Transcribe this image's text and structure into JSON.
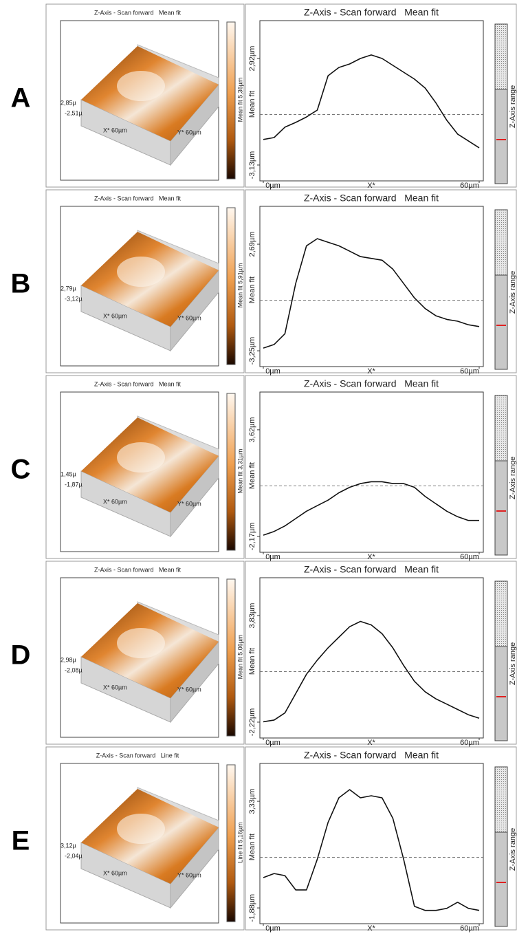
{
  "panels": [
    {
      "label": "A",
      "map": {
        "title": "Z-Axis - Scan forward   Mean fit",
        "z_high": "2,85µ",
        "z_low": "-2,51µ",
        "x_axis": "X* 60µm",
        "y_axis": "Y* 60µm",
        "colorbar": "Mean fit 5,36µm"
      },
      "profile": {
        "title": "Z-Axis - Scan forward   Mean fit",
        "ylabel": "Mean fit",
        "xlabel": "X*",
        "range_label": "Z-Axis range",
        "xlim": [
          0,
          60
        ],
        "xticks": [
          {
            "value": 0,
            "label": "0µm"
          },
          {
            "value": 60,
            "label": "60µm"
          }
        ],
        "ylim": [
          -4.03,
          5.07
        ],
        "yticks": [
          {
            "value": 2.92,
            "label": "2,92µm"
          },
          {
            "value": -3.13,
            "label": "-3,13µm"
          }
        ],
        "x": [
          0,
          3,
          6,
          9,
          12,
          15,
          18,
          21,
          24,
          27,
          30,
          33,
          36,
          39,
          42,
          45,
          48,
          51,
          54,
          57,
          60
        ],
        "values": [
          -1.68,
          -1.57,
          -0.98,
          -0.71,
          -0.4,
          -0.01,
          1.94,
          2.41,
          2.61,
          2.92,
          3.12,
          2.92,
          2.53,
          2.14,
          1.75,
          1.24,
          0.39,
          -0.59,
          -1.37,
          -1.76,
          -2.15
        ]
      }
    },
    {
      "label": "B",
      "map": {
        "title": "Z-Axis - Scan forward   Mean fit",
        "z_high": "2,79µ",
        "z_low": "-3,12µ",
        "x_axis": "X* 60µm",
        "y_axis": "Y* 60µm",
        "colorbar": "Mean fit 5,91µm"
      },
      "profile": {
        "title": "Z-Axis - Scan forward   Mean fit",
        "ylabel": "Mean fit",
        "xlabel": "X*",
        "range_label": "Z-Axis range",
        "xlim": [
          0,
          60
        ],
        "xticks": [
          {
            "value": 0,
            "label": "0µm"
          },
          {
            "value": 60,
            "label": "60µm"
          }
        ],
        "ylim": [
          -4.13,
          4.8
        ],
        "yticks": [
          {
            "value": 2.69,
            "label": "2,69µm"
          },
          {
            "value": -3.25,
            "label": "-3,25µm"
          }
        ],
        "x": [
          0,
          3,
          6,
          9,
          12,
          15,
          18,
          21,
          24,
          27,
          30,
          33,
          36,
          39,
          42,
          45,
          48,
          51,
          54,
          57,
          60
        ],
        "values": [
          -3.1,
          -2.9,
          -2.3,
          0.5,
          2.6,
          3.0,
          2.8,
          2.6,
          2.3,
          2.0,
          1.9,
          1.8,
          1.3,
          0.5,
          -0.3,
          -0.9,
          -1.3,
          -1.5,
          -1.6,
          -1.8,
          -1.9
        ]
      }
    },
    {
      "label": "C",
      "map": {
        "title": "Z-Axis - Scan forward   Mean fit",
        "z_high": "1,45µ",
        "z_low": "-1,87µ",
        "x_axis": "X* 60µm",
        "y_axis": "Y* 60µm",
        "colorbar": "Mean fit 3,31µm"
      },
      "profile": {
        "title": "Z-Axis - Scan forward   Mean fit",
        "ylabel": "Mean fit",
        "xlabel": "X*",
        "range_label": "Z-Axis range",
        "xlim": [
          0,
          60
        ],
        "xticks": [
          {
            "value": 0,
            "label": "0µm"
          },
          {
            "value": 60,
            "label": "60µm"
          }
        ],
        "ylim": [
          -3.03,
          5.67
        ],
        "yticks": [
          {
            "value": 3.62,
            "label": "3,62µm"
          },
          {
            "value": -2.17,
            "label": "-2,17µm"
          }
        ],
        "x": [
          0,
          3,
          6,
          9,
          12,
          15,
          18,
          21,
          24,
          27,
          30,
          33,
          36,
          39,
          42,
          45,
          48,
          51,
          54,
          57,
          60
        ],
        "values": [
          -2.1,
          -1.9,
          -1.6,
          -1.2,
          -0.8,
          -0.5,
          -0.2,
          0.2,
          0.5,
          0.7,
          0.8,
          0.8,
          0.7,
          0.7,
          0.5,
          0,
          -0.4,
          -0.8,
          -1.1,
          -1.3,
          -1.3
        ]
      }
    },
    {
      "label": "D",
      "map": {
        "title": "Z-Axis - Scan forward   Mean fit",
        "z_high": "2,98µ",
        "z_low": "-2,08µ",
        "x_axis": "X* 60µm",
        "y_axis": "Y* 60µm",
        "colorbar": "Mean fit 5,06µm"
      },
      "profile": {
        "title": "Z-Axis - Scan forward   Mean fit",
        "ylabel": "Mean fit",
        "xlabel": "X*",
        "range_label": "Z-Axis range",
        "xlim": [
          0,
          60
        ],
        "xticks": [
          {
            "value": 0,
            "label": "0µm"
          },
          {
            "value": 60,
            "label": "60µm"
          }
        ],
        "ylim": [
          -3.12,
          5.98
        ],
        "yticks": [
          {
            "value": 3.83,
            "label": "3,83µm"
          },
          {
            "value": -2.22,
            "label": "-2,22µm"
          }
        ],
        "x": [
          0,
          3,
          6,
          9,
          12,
          15,
          18,
          21,
          24,
          27,
          30,
          33,
          36,
          39,
          42,
          45,
          48,
          51,
          54,
          57,
          60
        ],
        "values": [
          -2.2,
          -2.1,
          -1.7,
          -0.6,
          0.5,
          1.3,
          2.0,
          2.6,
          3.2,
          3.5,
          3.3,
          2.8,
          2.0,
          1.0,
          0.1,
          -0.5,
          -0.9,
          -1.2,
          -1.5,
          -1.8,
          -2.0
        ]
      }
    },
    {
      "label": "E",
      "map": {
        "title": "Z-Axis - Scan forward   Line fit",
        "z_high": "3,12µ",
        "z_low": "-2,04µ",
        "x_axis": "X* 60µm",
        "y_axis": "Y* 60µm",
        "colorbar": "Line fit 5,16µm"
      },
      "profile": {
        "title": "Z-Axis - Scan forward   Mean fit",
        "ylabel": "Mean fit",
        "xlabel": "X*",
        "range_label": "Z-Axis range",
        "xlim": [
          0,
          60
        ],
        "xticks": [
          {
            "value": 0,
            "label": "0µm"
          },
          {
            "value": 60,
            "label": "60µm"
          }
        ],
        "ylim": [
          -2.65,
          5.18
        ],
        "yticks": [
          {
            "value": 3.33,
            "label": "3,33µm"
          },
          {
            "value": -1.88,
            "label": "-1,88µm"
          }
        ],
        "x": [
          0,
          3,
          6,
          9,
          12,
          15,
          18,
          21,
          24,
          27,
          30,
          33,
          36,
          39,
          42,
          45,
          48,
          51,
          54,
          57,
          60
        ],
        "values": [
          -0.4,
          -0.2,
          -0.3,
          -1.0,
          -1.0,
          0.5,
          2.3,
          3.5,
          3.9,
          3.5,
          3.6,
          3.5,
          2.5,
          0.5,
          -1.8,
          -2.0,
          -2.0,
          -1.9,
          -1.6,
          -1.9,
          -2.0
        ]
      }
    }
  ]
}
